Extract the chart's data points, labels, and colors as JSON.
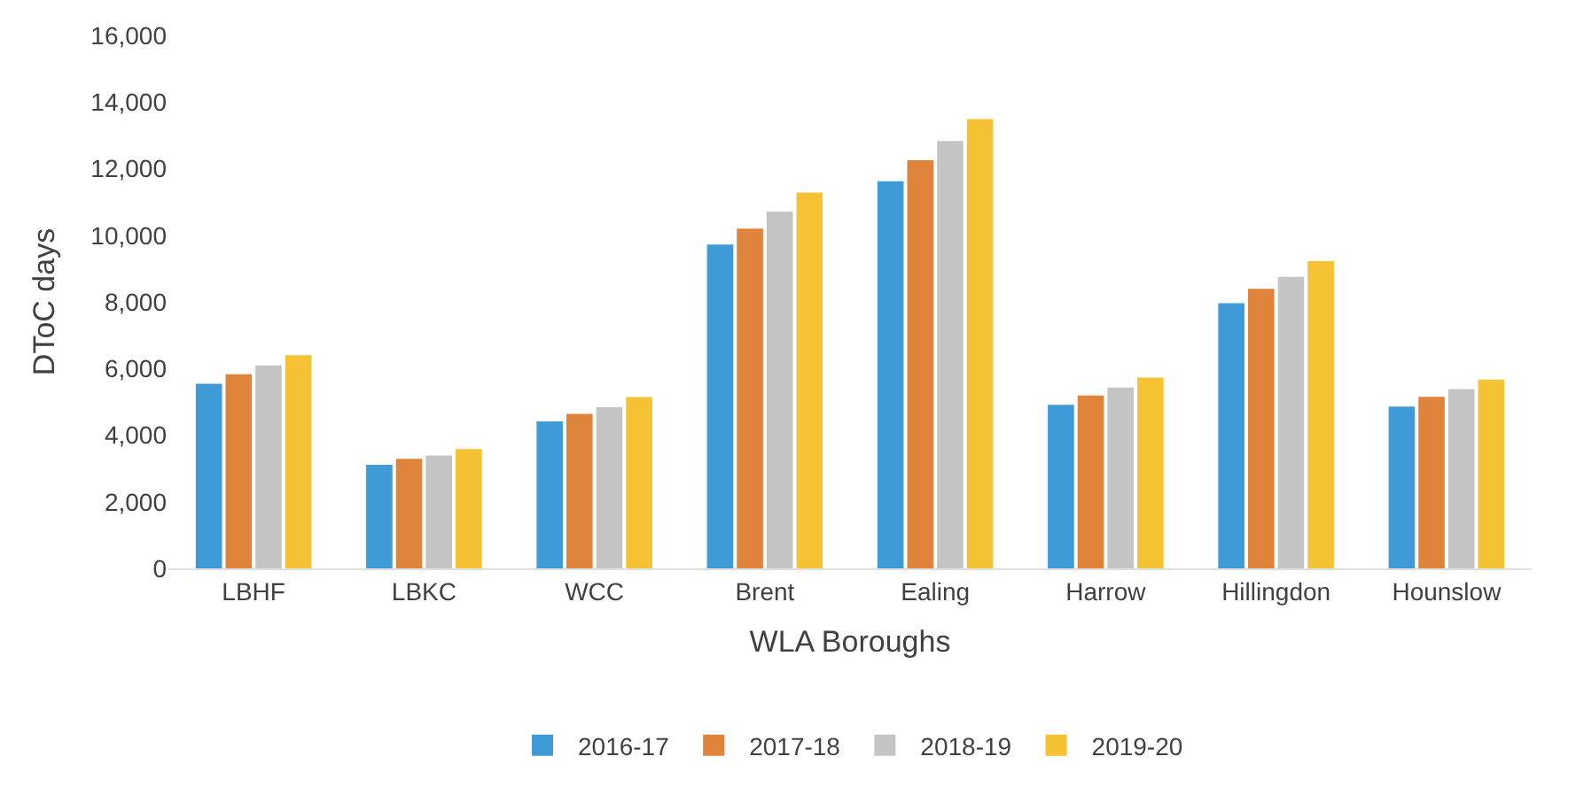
{
  "chart_data": {
    "type": "bar",
    "xlabel": "WLA Boroughs",
    "ylabel": "DToC days",
    "categories": [
      "LBHF",
      "LBKC",
      "WCC",
      "Brent",
      "Ealing",
      "Harrow",
      "Hillingdon",
      "Hounslow"
    ],
    "series": [
      {
        "name": "2016-17",
        "color": "#3f9ad8",
        "values": [
          5540,
          3110,
          4410,
          9720,
          11620,
          4910,
          7960,
          4860
        ]
      },
      {
        "name": "2017-18",
        "color": "#e0843c",
        "values": [
          5830,
          3290,
          4640,
          10200,
          12250,
          5190,
          8390,
          5150
        ]
      },
      {
        "name": "2018-19",
        "color": "#c4c4c4",
        "values": [
          6090,
          3390,
          4840,
          10710,
          12830,
          5430,
          8750,
          5380
        ]
      },
      {
        "name": "2019-20",
        "color": "#f5c233",
        "values": [
          6400,
          3580,
          5140,
          11280,
          13490,
          5730,
          9220,
          5670
        ]
      }
    ],
    "ylim": [
      0,
      16000
    ],
    "yticks": [
      {
        "value": 0,
        "label": "0"
      },
      {
        "value": 2000,
        "label": "2,000"
      },
      {
        "value": 4000,
        "label": "4,000"
      },
      {
        "value": 6000,
        "label": "6,000"
      },
      {
        "value": 8000,
        "label": "8,000"
      },
      {
        "value": 10000,
        "label": "10,000"
      },
      {
        "value": 12000,
        "label": "12,000"
      },
      {
        "value": 14000,
        "label": "14,000"
      },
      {
        "value": 16000,
        "label": "16,000"
      }
    ],
    "legend": "bottom"
  }
}
